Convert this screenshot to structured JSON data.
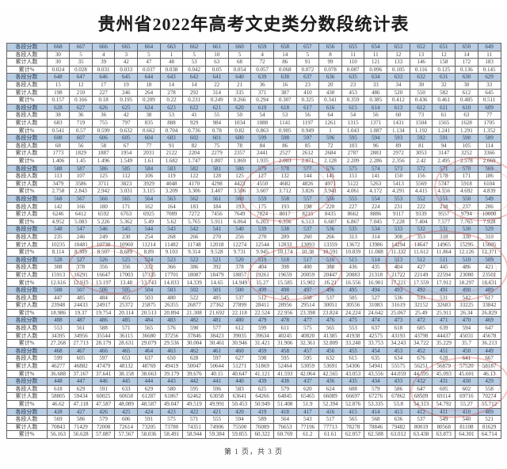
{
  "title": "贵州省2022年高考文史类分数段统计表",
  "footer": "第 1 页，共 3 页",
  "row_labels": {
    "score": "各段分数",
    "count": "各段人数",
    "cumulative": "累计人数",
    "cum_percent": "累计%"
  },
  "colors": {
    "score_row_bg": "#b9cde3",
    "table_border": "#636363",
    "stamp_red": "#cc3c37"
  },
  "groups": [
    {
      "scores": [
        668,
        667,
        666,
        665,
        664,
        663,
        662,
        661,
        660,
        659,
        658,
        657,
        656,
        655,
        654,
        653,
        652,
        651,
        650,
        649
      ],
      "counts": [
        30,
        5,
        4,
        3,
        5,
        1,
        5,
        10,
        5,
        4,
        14,
        5,
        8,
        11,
        11,
        12,
        13,
        12,
        14,
        11
      ],
      "cumulative": [
        30,
        35,
        39,
        42,
        47,
        48,
        53,
        63,
        68,
        72,
        86,
        91,
        99,
        110,
        121,
        133,
        146,
        158,
        172,
        183
      ],
      "cum_percent": [
        "0.024",
        "0.028",
        "0.031",
        "0.033",
        "0.037",
        "0.038",
        "0.042",
        "0.05",
        "0.054",
        "0.057",
        "0.068",
        "0.072",
        "0.078",
        "0.087",
        "0.096",
        "0.105",
        "0.116",
        "0.125",
        "0.136",
        "0.145"
      ]
    },
    {
      "scores": [
        648,
        647,
        646,
        645,
        644,
        643,
        642,
        641,
        640,
        639,
        638,
        637,
        636,
        635,
        634,
        633,
        632,
        631,
        630,
        629
      ],
      "counts": [
        15,
        12,
        17,
        19,
        18,
        14,
        14,
        22,
        21,
        36,
        16,
        23,
        20,
        23,
        33,
        34,
        30,
        32,
        30,
        33
      ],
      "cumulative": [
        198,
        210,
        227,
        246,
        264,
        278,
        292,
        314,
        335,
        371,
        387,
        410,
        430,
        453,
        486,
        520,
        550,
        582,
        612,
        645
      ],
      "cum_percent": [
        "0.157",
        "0.166",
        "0.18",
        "0.195",
        "0.209",
        "0.22",
        "0.231",
        "0.249",
        "0.266",
        "0.294",
        "0.307",
        "0.325",
        "0.341",
        "0.359",
        "0.385",
        "0.412",
        "0.436",
        "0.461",
        "0.485",
        "0.511"
      ]
    },
    {
      "scores": [
        628,
        627,
        626,
        625,
        624,
        623,
        622,
        621,
        620,
        619,
        618,
        617,
        616,
        615,
        614,
        613,
        612,
        611,
        610,
        609
      ],
      "counts": [
        38,
        36,
        36,
        42,
        38,
        53,
        41,
        55,
        50,
        54,
        53,
        56,
        64,
        54,
        56,
        60,
        73,
        61,
        63,
        77
      ],
      "cumulative": [
        683,
        719,
        755,
        797,
        835,
        888,
        929,
        984,
        1034,
        1088,
        1141,
        1197,
        1261,
        1315,
        1371,
        1431,
        1504,
        1565,
        1628,
        1705
      ],
      "cum_percent": [
        "0.541",
        "0.57",
        "0.599",
        "0.632",
        "0.662",
        "0.704",
        "0.736",
        "0.78",
        "0.82",
        "0.863",
        "0.905",
        "0.949",
        "1",
        "1.043",
        "1.087",
        "1.134",
        "1.192",
        "1.241",
        "1.291",
        "1.352"
      ]
    },
    {
      "scores": [
        608,
        607,
        606,
        605,
        604,
        603,
        602,
        601,
        600,
        599,
        598,
        597,
        596,
        595,
        594,
        593,
        592,
        591,
        590,
        589
      ],
      "counts": [
        68,
        56,
        58,
        67,
        77,
        91,
        82,
        75,
        78,
        84,
        86,
        85,
        72,
        103,
        96,
        89,
        81,
        94,
        105,
        114
      ],
      "cumulative": [
        1773,
        1829,
        1887,
        1954,
        2031,
        2122,
        2204,
        2279,
        2357,
        2441,
        2527,
        2612,
        2684,
        2787,
        2883,
        2972,
        3053,
        3147,
        3252,
        3366
      ],
      "cum_percent": [
        "1.406",
        "1.45",
        "1.496",
        "1.549",
        "1.61",
        "1.682",
        "1.747",
        "1.807",
        "1.869",
        "1.935",
        "2.003",
        "2.071",
        "2.128",
        "2.209",
        "2.286",
        "2.356",
        "2.42",
        "2.495",
        "2.578",
        "2.669"
      ]
    },
    {
      "scores": [
        588,
        587,
        586,
        585,
        584,
        583,
        582,
        581,
        580,
        579,
        578,
        577,
        576,
        575,
        574,
        573,
        572,
        571,
        570,
        569
      ],
      "counts": [
        113,
        107,
        125,
        112,
        106,
        119,
        122,
        128,
        125,
        127,
        132,
        144,
        145,
        151,
        141,
        150,
        156,
        178,
        171,
        186
      ],
      "cumulative": [
        3479,
        3586,
        3711,
        3823,
        3929,
        4048,
        4170,
        4298,
        4423,
        4550,
        4682,
        4826,
        4971,
        5122,
        5263,
        5413,
        5569,
        5747,
        5918,
        6104
      ],
      "cum_percent": [
        "2.758",
        "2.843",
        "2.942",
        "3.031",
        "3.115",
        "3.209",
        "3.306",
        "3.407",
        "3.506",
        "3.607",
        "3.712",
        "3.826",
        "3.941",
        "4.061",
        "4.172",
        "4.291",
        "4.415",
        "4.556",
        "4.692",
        "4.839"
      ]
    },
    {
      "scores": [
        568,
        567,
        566,
        565,
        564,
        563,
        562,
        561,
        560,
        559,
        558,
        557,
        556,
        555,
        554,
        553,
        552,
        551,
        550,
        549
      ],
      "counts": [
        142,
        166,
        180,
        171,
        162,
        164,
        183,
        184,
        193,
        175,
        193,
        198,
        220,
        227,
        224,
        231,
        222,
        218,
        237,
        206
      ],
      "cumulative": [
        6246,
        6412,
        6592,
        6763,
        6925,
        7089,
        7272,
        7456,
        7649,
        7824,
        8017,
        8215,
        8435,
        8662,
        8886,
        9117,
        9339,
        9557,
        9794,
        10000
      ],
      "cum_percent": [
        "4.952",
        "5.083",
        "5.226",
        "5.362",
        "5.49",
        "5.62",
        "5.765",
        "5.911",
        "6.064",
        "6.203",
        "6.356",
        "6.513",
        "6.687",
        "6.867",
        "7.045",
        "7.228",
        "7.404",
        "7.577",
        "7.765",
        "7.928"
      ]
    },
    {
      "scores": [
        548,
        547,
        546,
        545,
        544,
        543,
        542,
        541,
        540,
        539,
        538,
        537,
        536,
        535,
        534,
        533,
        532,
        531,
        530,
        529
      ],
      "counts": [
        235,
        246,
        249,
        230,
        254,
        268,
        266,
        270,
        256,
        270,
        289,
        260,
        266,
        313,
        314,
        308,
        353,
        318,
        330,
        310
      ],
      "cumulative": [
        10235,
        10481,
        10730,
        10960,
        11214,
        11482,
        11748,
        12018,
        12274,
        12544,
        12833,
        13093,
        13359,
        13672,
        13986,
        14294,
        14647,
        14965,
        15295,
        15605
      ],
      "cum_percent": [
        "8.114",
        "8.309",
        "8.507",
        "8.689",
        "8.89",
        "9.103",
        "9.314",
        "9.528",
        "9.731",
        "9.945",
        "10.174",
        "10.38",
        "10.591",
        "10.839",
        "11.088",
        "11.332",
        "11.612",
        "11.864",
        "12.126",
        "12.371"
      ]
    },
    {
      "scores": [
        528,
        527,
        526,
        525,
        524,
        523,
        522,
        521,
        520,
        519,
        518,
        517,
        516,
        515,
        514,
        513,
        512,
        511,
        510,
        509
      ],
      "counts": [
        308,
        378,
        356,
        356,
        332,
        366,
        386,
        392,
        378,
        404,
        398,
        400,
        388,
        436,
        435,
        404,
        427,
        445,
        486,
        421
      ],
      "cumulative": [
        15913,
        16291,
        16647,
        17003,
        17335,
        17701,
        18087,
        18479,
        18857,
        19261,
        19659,
        20059,
        20447,
        20883,
        21318,
        21722,
        22149,
        22594,
        23080,
        23501
      ],
      "cum_percent": [
        "12.616",
        "12.915",
        "13.197",
        "13.48",
        "13.743",
        "14.033",
        "14.339",
        "14.65",
        "14.949",
        "15.27",
        "15.585",
        "15.902",
        "16.21",
        "16.556",
        "16.901",
        "17.221",
        "17.559",
        "17.912",
        "18.297",
        "18.631"
      ]
    },
    {
      "scores": [
        508,
        507,
        506,
        505,
        504,
        503,
        502,
        501,
        500,
        499,
        498,
        497,
        496,
        495,
        494,
        493,
        492,
        491,
        490,
        489
      ],
      "counts": [
        447,
        485,
        484,
        455,
        503,
        480,
        522,
        485,
        537,
        512,
        545,
        558,
        537,
        505,
        527,
        536,
        533,
        531,
        542,
        617
      ],
      "cumulative": [
        23948,
        24433,
        24917,
        25372,
        25875,
        26355,
        26877,
        27362,
        27899,
        28411,
        28956,
        29514,
        30051,
        30556,
        31083,
        31619,
        32152,
        32683,
        33225,
        33842
      ],
      "cum_percent": [
        "18.986",
        "19.37",
        "19.754",
        "20.114",
        "20.513",
        "20.894",
        "21.308",
        "21.692",
        "22.118",
        "22.524",
        "22.956",
        "23.398",
        "23.824",
        "24.224",
        "24.642",
        "25.067",
        "25.49",
        "25.911",
        "26.34",
        "26.829"
      ]
    },
    {
      "scores": [
        488,
        487,
        486,
        485,
        484,
        483,
        482,
        481,
        480,
        479,
        478,
        477,
        476,
        475,
        474,
        473,
        472,
        471,
        470,
        469
      ],
      "counts": [
        553,
        561,
        588,
        571,
        565,
        576,
        590,
        577,
        612,
        599,
        611,
        575,
        565,
        553,
        637,
        618,
        605,
        639,
        594,
        647
      ],
      "cumulative": [
        34395,
        34956,
        35544,
        36115,
        36680,
        37256,
        37846,
        38423,
        39035,
        39634,
        40245,
        40820,
        41385,
        41938,
        42575,
        43193,
        43798,
        44437,
        45031,
        45678
      ],
      "cum_percent": [
        "27.268",
        "27.713",
        "28.179",
        "28.631",
        "29.079",
        "29.536",
        "30.004",
        "30.461",
        "30.946",
        "31.421",
        "31.906",
        "32.361",
        "32.809",
        "33.248",
        "33.753",
        "34.243",
        "34.722",
        "35.229",
        "35.7",
        "36.213"
      ]
    },
    {
      "scores": [
        468,
        467,
        466,
        465,
        464,
        463,
        462,
        461,
        460,
        459,
        458,
        457,
        456,
        455,
        454,
        453,
        452,
        451,
        450,
        449
      ],
      "counts": [
        599,
        605,
        597,
        653,
        637,
        650,
        628,
        597,
        627,
        598,
        595,
        595,
        632,
        615,
        635,
        634,
        676,
        628,
        641,
        667
      ],
      "cumulative": [
        46277,
        46882,
        47479,
        48132,
        48769,
        49419,
        50047,
        50644,
        51271,
        51869,
        52464,
        53059,
        53691,
        54306,
        54941,
        55575,
        56251,
        56879,
        57520,
        58187
      ],
      "cum_percent": [
        "36.688",
        "37.167",
        "37.641",
        "38.158",
        "38.663",
        "39.179",
        "39.676",
        "40.15",
        "40.647",
        "41.121",
        "41.593",
        "42.064",
        "42.565",
        "43.053",
        "43.556",
        "44.059",
        "44.595",
        "45.093",
        "45.601",
        "46.13"
      ]
    },
    {
      "scores": [
        448,
        447,
        446,
        445,
        444,
        443,
        442,
        441,
        440,
        439,
        438,
        437,
        436,
        435,
        434,
        433,
        432,
        431,
        430,
        429
      ],
      "counts": [
        618,
        629,
        591,
        633,
        629,
        580,
        595,
        596,
        583,
        625,
        579,
        620,
        624,
        608,
        579,
        586,
        647,
        605,
        602,
        558
      ],
      "cumulative": [
        58805,
        59434,
        60025,
        60658,
        61287,
        61867,
        62462,
        63058,
        63641,
        64266,
        64845,
        65465,
        66089,
        66697,
        67276,
        67862,
        68509,
        69114,
        69716,
        70274
      ],
      "cum_percent": [
        "46.62",
        "47.118",
        "47.587",
        "48.089",
        "48.587",
        "49.047",
        "49.519",
        "49.991",
        "50.453",
        "50.949",
        "51.408",
        "51.9",
        "52.394",
        "52.876",
        "53.335",
        "53.8",
        "54.313",
        "54.792",
        "55.27",
        "55.712"
      ]
    },
    {
      "scores": [
        428,
        427,
        426,
        425,
        424,
        423,
        422,
        421,
        420,
        419,
        418,
        417,
        416,
        415,
        414,
        413,
        412,
        411,
        410,
        409
      ],
      "counts": [
        569,
        586,
        579,
        606,
        591,
        575,
        571,
        555,
        594,
        589,
        564,
        543,
        517,
        565,
        568,
        636,
        537,
        549,
        540,
        521
      ],
      "cumulative": [
        70843,
        71429,
        72008,
        72614,
        73205,
        73780,
        74351,
        74906,
        75500,
        76089,
        76653,
        77196,
        77713,
        78278,
        78846,
        79482,
        80019,
        80568,
        81108,
        81629
      ],
      "cum_percent": [
        "56.163",
        "56.628",
        "57.087",
        "57.567",
        "58.036",
        "58.491",
        "58.944",
        "59.384",
        "59.855",
        "60.322",
        "60.769",
        "61.2",
        "61.61",
        "62.057",
        "62.508",
        "63.012",
        "63.438",
        "63.873",
        "64.301",
        "64.714"
      ]
    }
  ]
}
